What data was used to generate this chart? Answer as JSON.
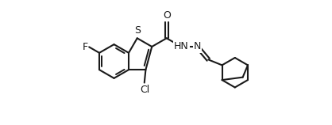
{
  "bg_color": "#ffffff",
  "line_color": "#1a1a1a",
  "line_width": 1.5,
  "font_size": 9,
  "figsize": [
    4.18,
    1.58
  ],
  "dpi": 100,
  "xlim": [
    -1.5,
    5.8
  ],
  "ylim": [
    -1.7,
    2.0
  ]
}
